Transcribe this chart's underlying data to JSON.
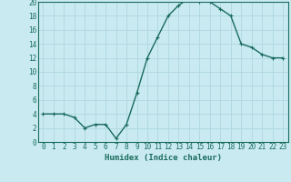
{
  "x": [
    0,
    1,
    2,
    3,
    4,
    5,
    6,
    7,
    8,
    9,
    10,
    11,
    12,
    13,
    14,
    15,
    16,
    17,
    18,
    19,
    20,
    21,
    22,
    23
  ],
  "y": [
    4,
    4,
    4,
    3.5,
    2,
    2.5,
    2.5,
    0.5,
    2.5,
    7,
    12,
    15,
    18,
    19.5,
    20.5,
    20,
    20,
    19,
    18,
    14,
    13.5,
    12.5,
    12,
    12
  ],
  "line_color": "#1a6b5e",
  "marker": "+",
  "marker_size": 3,
  "bg_color": "#c8eaf0",
  "grid_color": "#b0d8e0",
  "spine_color": "#1a6b5e",
  "tick_color": "#1a6b5e",
  "label_color": "#1a6b5e",
  "xlabel": "Humidex (Indice chaleur)",
  "xlim_min": -0.5,
  "xlim_max": 23.5,
  "ylim_min": 0,
  "ylim_max": 20,
  "yticks": [
    0,
    2,
    4,
    6,
    8,
    10,
    12,
    14,
    16,
    18,
    20
  ],
  "xticks": [
    0,
    1,
    2,
    3,
    4,
    5,
    6,
    7,
    8,
    9,
    10,
    11,
    12,
    13,
    14,
    15,
    16,
    17,
    18,
    19,
    20,
    21,
    22,
    23
  ],
  "xlabel_fontsize": 6.5,
  "tick_fontsize": 5.5,
  "linewidth": 1.0
}
